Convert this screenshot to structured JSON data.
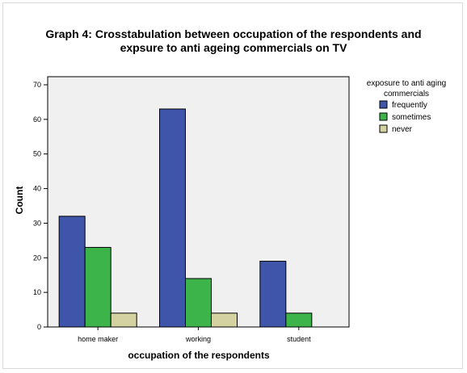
{
  "chart_data": {
    "type": "bar",
    "title_line1": "Graph 4: Crosstabulation between occupation of the respondents and",
    "title_line2": "expsure to anti ageing commercials on TV",
    "xlabel": "occupation of the respondents",
    "ylabel": "Count",
    "categories": [
      "home maker",
      "working",
      "student"
    ],
    "series": [
      {
        "name": "frequently",
        "color": "#3f55a9",
        "values": [
          32,
          63,
          19
        ]
      },
      {
        "name": "sometimes",
        "color": "#3cb44a",
        "values": [
          23,
          14,
          4
        ]
      },
      {
        "name": "never",
        "color": "#d5d2a1",
        "values": [
          4,
          4,
          0
        ]
      }
    ],
    "ylim": [
      0,
      70
    ],
    "yticks": [
      0,
      10,
      20,
      30,
      40,
      50,
      60,
      70
    ],
    "legend_title_line1": "exposure to anti aging",
    "legend_title_line2": "commercials",
    "legend_position": "right",
    "plot_background": "#f0f0f0",
    "grid": false
  }
}
